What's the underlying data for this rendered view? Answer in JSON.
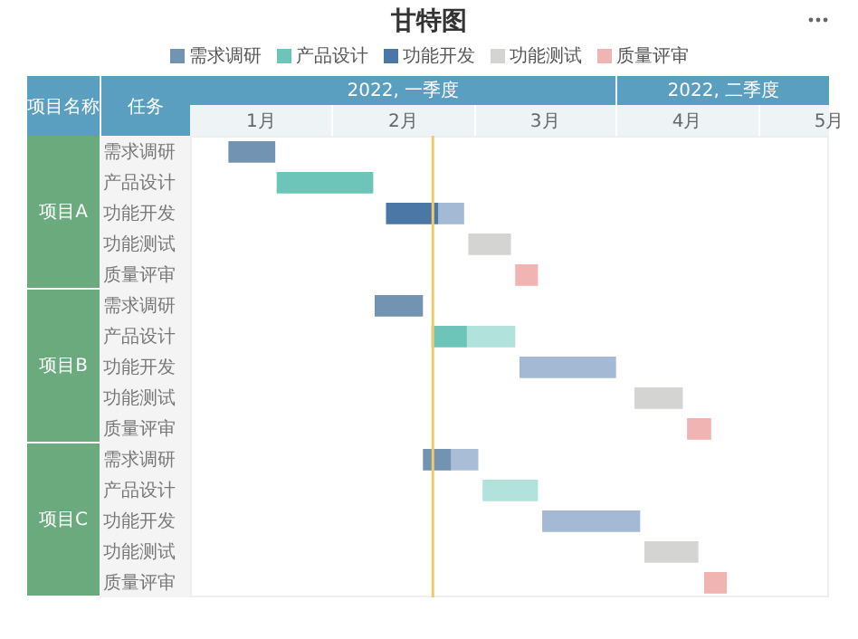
{
  "chart_data": {
    "type": "bar",
    "orientation": "horizontal",
    "title": "甘特图",
    "ylabel": "任务",
    "annotations": [
      "2022, 一季度",
      "2022, 二季度",
      "项目名称",
      "项目A",
      "项目B",
      "项目C"
    ],
    "categories": [
      "需求调研",
      "产品设计",
      "功能开发",
      "功能测试",
      "质量评审",
      "需求调研",
      "产品设计",
      "功能开发",
      "功能测试",
      "质量评审",
      "需求调研",
      "产品设计",
      "功能开发",
      "功能测试",
      "质量评审"
    ],
    "series": [
      {
        "name": "需求调研",
        "color": "#7393b3",
        "base": [
          0.77,
          null,
          null,
          null,
          null,
          1.8,
          null,
          null,
          null,
          null,
          2.14,
          null,
          null,
          null,
          null
        ],
        "values": [
          0.33,
          null,
          null,
          null,
          null,
          0.34,
          null,
          null,
          null,
          null,
          0.2,
          null,
          null,
          null,
          null
        ]
      },
      {
        "name": "产品设计",
        "color": "#6cc5b8",
        "base": [
          null,
          1.11,
          null,
          null,
          null,
          null,
          2.2,
          null,
          null,
          null,
          null,
          null,
          null,
          null,
          null
        ],
        "values": [
          null,
          0.68,
          null,
          null,
          null,
          null,
          0.25,
          null,
          null,
          null,
          null,
          null,
          null,
          null,
          null
        ]
      },
      {
        "name": "功能开发",
        "color": "#4a77a6",
        "base": [
          null,
          null,
          1.88,
          null,
          null,
          null,
          null,
          null,
          null,
          null,
          null,
          null,
          null,
          null,
          null
        ],
        "values": [
          null,
          null,
          0.37,
          null,
          null,
          null,
          null,
          null,
          null,
          null,
          null,
          null,
          null,
          null,
          null
        ]
      },
      {
        "name": "功能测试",
        "color": "#d4d4d2",
        "base": [
          null,
          null,
          null,
          2.46,
          null,
          null,
          null,
          null,
          3.63,
          null,
          null,
          null,
          null,
          3.7,
          null
        ],
        "values": [
          null,
          null,
          null,
          0.3,
          null,
          null,
          null,
          null,
          0.34,
          null,
          null,
          null,
          null,
          0.38,
          null
        ]
      },
      {
        "name": "质量评审",
        "color": "#f0b4b2",
        "base": [
          null,
          null,
          null,
          null,
          2.79,
          null,
          null,
          null,
          null,
          4,
          null,
          null,
          null,
          null,
          4.12
        ],
        "values": [
          null,
          null,
          null,
          null,
          0.16,
          null,
          null,
          null,
          null,
          0.17,
          null,
          null,
          null,
          null,
          0.16
        ]
      },
      {
        "color": "#a9bdd6",
        "base": [
          null,
          null,
          null,
          null,
          null,
          null,
          null,
          null,
          null,
          null,
          2.34,
          null,
          null,
          null,
          null
        ],
        "values": [
          null,
          null,
          null,
          null,
          null,
          null,
          null,
          null,
          null,
          null,
          0.19,
          null,
          null,
          null,
          null
        ]
      },
      {
        "color": "#b2e2dc",
        "base": [
          null,
          null,
          null,
          null,
          null,
          null,
          2.45,
          null,
          null,
          null,
          null,
          2.56,
          null,
          null,
          null
        ],
        "values": [
          null,
          null,
          null,
          null,
          null,
          null,
          0.34,
          null,
          null,
          null,
          null,
          0.39,
          null,
          null,
          null
        ]
      },
      {
        "color": "#a3b9d4",
        "base": [
          null,
          null,
          2.25,
          null,
          null,
          null,
          null,
          2.82,
          null,
          null,
          null,
          null,
          2.98,
          null,
          null
        ],
        "values": [
          null,
          null,
          0.18,
          null,
          null,
          null,
          null,
          0.68,
          null,
          null,
          null,
          null,
          0.69,
          null,
          null
        ]
      }
    ],
    "xlim": [
      0.5,
      5
    ],
    "xticks": [
      {
        "value": 1,
        "label": "1月"
      },
      {
        "value": 2,
        "label": "2月"
      },
      {
        "value": 3,
        "label": "3月"
      },
      {
        "value": 4,
        "label": "4月"
      },
      {
        "value": 5,
        "label": "5月"
      }
    ],
    "ref_lines": [
      {
        "axis": "x",
        "value": 2.21,
        "color": "#f2c96b"
      }
    ],
    "legend": "top"
  }
}
